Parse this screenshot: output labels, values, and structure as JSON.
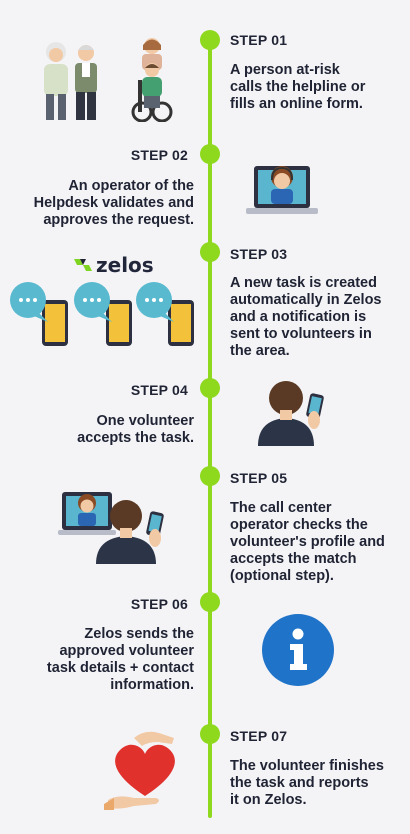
{
  "steps": [
    {
      "label": "STEP 01",
      "text": [
        "A person at-risk",
        "calls the helpline or",
        "fills an online form."
      ]
    },
    {
      "label": "STEP 02",
      "text": [
        "An operator of the",
        "Helpdesk validates and",
        "approves the request."
      ]
    },
    {
      "label": "STEP 03",
      "text": [
        "A new task is created",
        "automatically in Zelos",
        "and a notification is",
        "sent to volunteers in",
        "the area."
      ]
    },
    {
      "label": "STEP 04",
      "text": [
        "One volunteer",
        "accepts the task."
      ]
    },
    {
      "label": "STEP 05",
      "text": [
        "The call center",
        "operator checks the",
        "volunteer's profile and",
        "accepts the match",
        "(optional step)."
      ]
    },
    {
      "label": "STEP 06",
      "text": [
        "Zelos sends the",
        "approved volunteer",
        "task details + contact",
        "information."
      ]
    },
    {
      "label": "STEP 07",
      "text": [
        "The volunteer finishes",
        "the task and reports",
        "it on Zelos."
      ]
    }
  ],
  "logo": {
    "word": "zelos"
  },
  "colors": {
    "accent": "#8ed81e",
    "bubble": "#58b9cf",
    "phone": "#f3c23a",
    "info": "#1f73c8",
    "heart": "#e0312c"
  },
  "icons": [
    "elderly-couple-icon",
    "wheelchair-icon",
    "operator-laptop-icon",
    "chat-phone-icon",
    "volunteer-phone-icon",
    "info-icon",
    "heart-hands-icon"
  ]
}
